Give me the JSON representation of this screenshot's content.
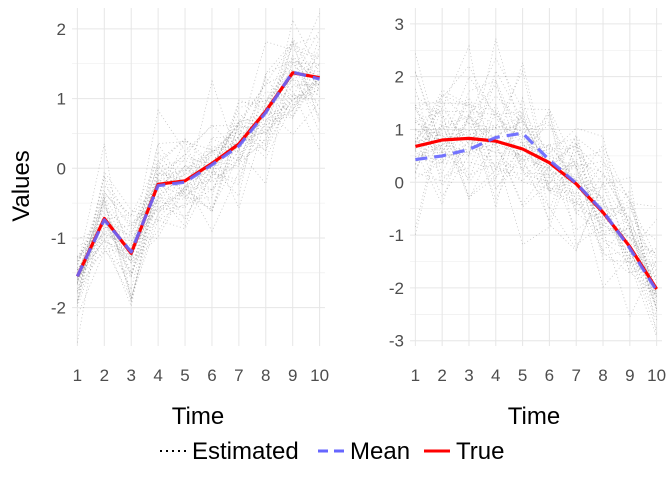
{
  "chart_data": [
    {
      "type": "line",
      "panel": "left",
      "xlabel": "Time",
      "ylabel": "Values",
      "x": [
        1,
        2,
        3,
        4,
        5,
        6,
        7,
        8,
        9,
        10
      ],
      "xlim": [
        0.8,
        10.2
      ],
      "ylim": [
        -2.55,
        2.3
      ],
      "yticks": [
        -2,
        -1,
        0,
        1,
        2
      ],
      "grid": true,
      "series": [
        {
          "name": "Mean",
          "style": "dashed",
          "color": "#6666ff",
          "values": [
            -1.55,
            -0.74,
            -1.2,
            -0.25,
            -0.2,
            0.05,
            0.32,
            0.8,
            1.38,
            1.28
          ]
        },
        {
          "name": "True",
          "style": "solid",
          "color": "#ff0000",
          "values": [
            -1.55,
            -0.72,
            -1.22,
            -0.23,
            -0.18,
            0.07,
            0.35,
            0.82,
            1.37,
            1.3
          ]
        }
      ],
      "estimated_samples": 40,
      "estimated_spread": 0.45
    },
    {
      "type": "line",
      "panel": "right",
      "xlabel": "Time",
      "ylabel": "",
      "x": [
        1,
        2,
        3,
        4,
        5,
        6,
        7,
        8,
        9,
        10
      ],
      "xlim": [
        0.8,
        10.2
      ],
      "ylim": [
        -3.1,
        3.3
      ],
      "yticks": [
        -3,
        -2,
        -1,
        0,
        1,
        2,
        3
      ],
      "grid": true,
      "series": [
        {
          "name": "Mean",
          "style": "dashed",
          "color": "#6666ff",
          "values": [
            0.43,
            0.5,
            0.62,
            0.85,
            0.93,
            0.42,
            -0.02,
            -0.55,
            -1.25,
            -2.05
          ]
        },
        {
          "name": "True",
          "style": "solid",
          "color": "#ff0000",
          "values": [
            0.68,
            0.8,
            0.83,
            0.78,
            0.63,
            0.37,
            -0.03,
            -0.57,
            -1.22,
            -2.02
          ]
        }
      ],
      "estimated_samples": 40,
      "estimated_spread": 0.8
    }
  ],
  "legend": {
    "position": "bottom",
    "items": [
      {
        "label": "Estimated",
        "style": "dotted",
        "color": "#000000"
      },
      {
        "label": "Mean",
        "style": "dashed",
        "color": "#6666ff"
      },
      {
        "label": "True",
        "style": "solid",
        "color": "#ff0000"
      }
    ]
  }
}
